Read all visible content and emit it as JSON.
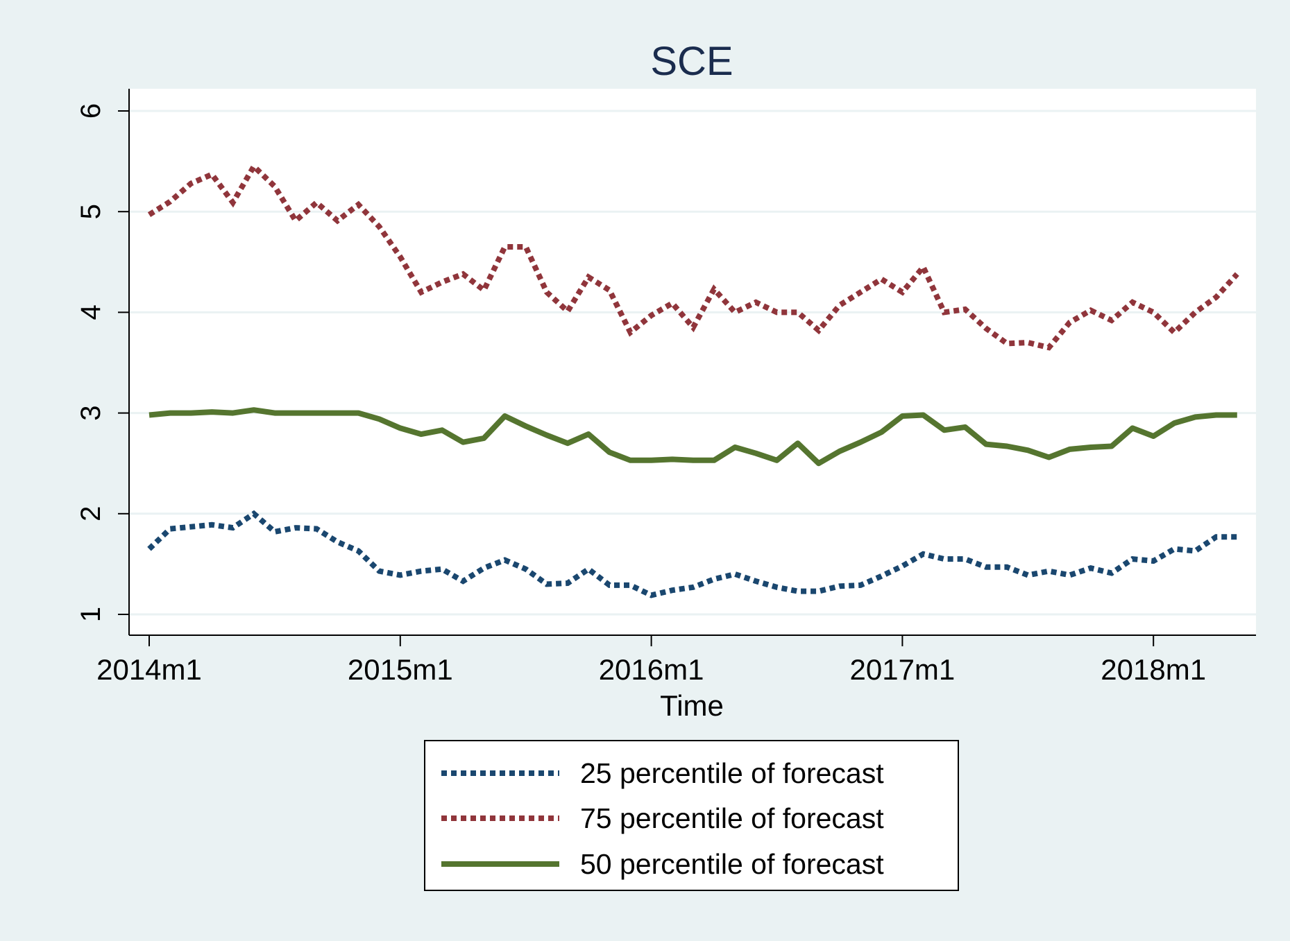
{
  "chart_data": {
    "type": "line",
    "title": "SCE",
    "xlabel": "Time",
    "ylabel": "",
    "ylim": [
      1,
      6
    ],
    "yticks": [
      1,
      2,
      3,
      4,
      5,
      6
    ],
    "xticks": [
      "2014m1",
      "2015m1",
      "2016m1",
      "2017m1",
      "2018m1"
    ],
    "x_start": "2014m1",
    "x_end": "2018m5",
    "grid": true,
    "legend_position": "bottom",
    "series": [
      {
        "name": "25 percentile of forecast",
        "color": "#1a476f",
        "style": "dotted",
        "values": [
          1.65,
          1.85,
          1.87,
          1.89,
          1.86,
          2.0,
          1.82,
          1.86,
          1.85,
          1.72,
          1.63,
          1.43,
          1.39,
          1.43,
          1.45,
          1.33,
          1.46,
          1.54,
          1.45,
          1.3,
          1.31,
          1.45,
          1.29,
          1.29,
          1.19,
          1.24,
          1.27,
          1.35,
          1.4,
          1.33,
          1.27,
          1.23,
          1.23,
          1.28,
          1.29,
          1.38,
          1.48,
          1.6,
          1.55,
          1.55,
          1.47,
          1.47,
          1.39,
          1.43,
          1.39,
          1.46,
          1.41,
          1.55,
          1.53,
          1.65,
          1.63,
          1.77,
          1.77
        ]
      },
      {
        "name": "75 percentile of forecast",
        "color": "#90353b",
        "style": "dotted",
        "values": [
          4.97,
          5.1,
          5.28,
          5.37,
          5.09,
          5.45,
          5.25,
          4.91,
          5.09,
          4.91,
          5.07,
          4.85,
          4.55,
          4.2,
          4.3,
          4.38,
          4.22,
          4.65,
          4.65,
          4.2,
          4.01,
          4.35,
          4.22,
          3.8,
          3.97,
          4.09,
          3.85,
          4.23,
          4.0,
          4.1,
          4.0,
          4.0,
          3.82,
          4.07,
          4.2,
          4.33,
          4.2,
          4.45,
          4.0,
          4.03,
          3.84,
          3.69,
          3.7,
          3.65,
          3.9,
          4.02,
          3.92,
          4.1,
          4.0,
          3.8,
          4.0,
          4.15,
          4.38
        ]
      },
      {
        "name": "50 percentile of forecast",
        "color": "#55752f",
        "style": "solid",
        "values": [
          2.98,
          3.0,
          3.0,
          3.01,
          3.0,
          3.03,
          3.0,
          3.0,
          3.0,
          3.0,
          3.0,
          2.94,
          2.85,
          2.79,
          2.83,
          2.71,
          2.75,
          2.97,
          2.87,
          2.78,
          2.7,
          2.79,
          2.61,
          2.53,
          2.53,
          2.54,
          2.53,
          2.53,
          2.66,
          2.6,
          2.53,
          2.7,
          2.5,
          2.62,
          2.71,
          2.81,
          2.97,
          2.98,
          2.83,
          2.86,
          2.69,
          2.67,
          2.63,
          2.56,
          2.64,
          2.66,
          2.67,
          2.85,
          2.77,
          2.9,
          2.96,
          2.98,
          2.98
        ]
      }
    ]
  }
}
